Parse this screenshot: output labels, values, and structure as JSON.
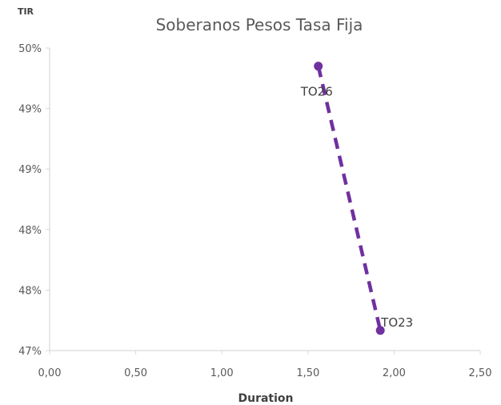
{
  "chart_data": {
    "type": "scatter",
    "title": "Soberanos Pesos Tasa Fija",
    "xlabel": "Duration",
    "ylabel": "TIR",
    "xlim": [
      0,
      2.5
    ],
    "ylim": [
      47.0,
      50.0
    ],
    "x_ticks": [
      {
        "value": 0.0,
        "label": "0,00"
      },
      {
        "value": 0.5,
        "label": "0,50"
      },
      {
        "value": 1.0,
        "label": "1,00"
      },
      {
        "value": 1.5,
        "label": "1,50"
      },
      {
        "value": 2.0,
        "label": "2,00"
      },
      {
        "value": 2.5,
        "label": "2,50"
      }
    ],
    "y_ticks": [
      {
        "value": 47.0,
        "label": "47%"
      },
      {
        "value": 47.6,
        "label": "48%"
      },
      {
        "value": 48.2,
        "label": "48%"
      },
      {
        "value": 48.8,
        "label": "49%"
      },
      {
        "value": 49.4,
        "label": "49%"
      },
      {
        "value": 50.0,
        "label": "50%"
      }
    ],
    "grid": false,
    "legend": "none",
    "series": [
      {
        "points": [
          {
            "label": "TO26",
            "x": 1.56,
            "y": 49.82
          },
          {
            "label": "TO23",
            "x": 1.92,
            "y": 47.2
          }
        ]
      }
    ],
    "trendline": {
      "style": "dashed",
      "from": [
        1.56,
        49.82
      ],
      "to": [
        1.92,
        47.2
      ]
    },
    "colors": {
      "marker": "#7030a0",
      "trendline": "#7030a0",
      "axis": "#d9d9d9",
      "text": "#595959"
    }
  }
}
